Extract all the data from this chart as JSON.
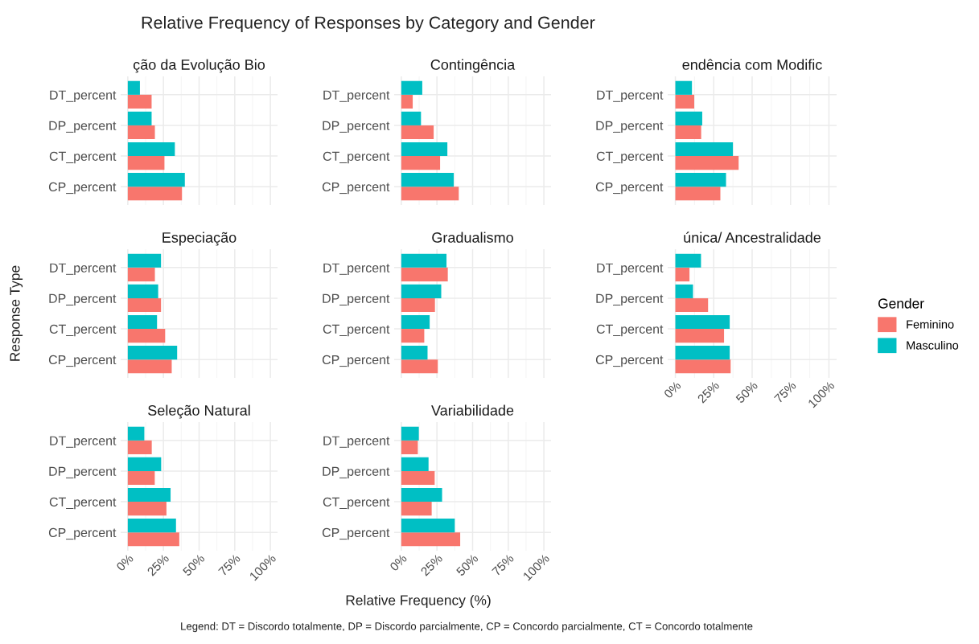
{
  "chart_data": [
    {
      "type": "bar",
      "orientation": "horizontal",
      "title": "ção da Evolução Bio",
      "categories": [
        "DT_percent",
        "DP_percent",
        "CT_percent",
        "CP_percent"
      ],
      "series": [
        {
          "name": "Feminino",
          "color": "#f8766d",
          "values": [
            16.7,
            19,
            25.7,
            38
          ]
        },
        {
          "name": "Masculino",
          "color": "#00bfc4",
          "values": [
            8.5,
            16.7,
            33,
            40
          ]
        }
      ],
      "xlim": [
        -5,
        105
      ],
      "xticks": [
        {
          "value": 0,
          "label": null
        },
        {
          "value": 25,
          "label": null
        },
        {
          "value": 50,
          "label": null
        },
        {
          "value": 75,
          "label": null
        },
        {
          "value": 100,
          "label": null
        }
      ],
      "tick_labels": "y",
      "grid": true,
      "legend": "right",
      "legend_title": "Gender"
    },
    {
      "type": "bar",
      "orientation": "horizontal",
      "title": "Contingência",
      "categories": [
        "DT_percent",
        "DP_percent",
        "CT_percent",
        "CP_percent"
      ],
      "series": [
        {
          "color": "#f8766d",
          "values": [
            8,
            22.7,
            27.2,
            40.3
          ]
        },
        {
          "color": "#00bfc4",
          "values": [
            14.7,
            13.8,
            32.3,
            36.8
          ]
        }
      ],
      "xlim": [
        -5,
        105
      ],
      "xticks": [
        {
          "value": 0,
          "label": null
        },
        {
          "value": 25,
          "label": null
        },
        {
          "value": 50,
          "label": null
        },
        {
          "value": 75,
          "label": null
        },
        {
          "value": 100,
          "label": null
        }
      ],
      "tick_labels": "y",
      "grid": true
    },
    {
      "type": "bar",
      "orientation": "horizontal",
      "title": "endência com Modific",
      "categories": [
        "DT_percent",
        "DP_percent",
        "CT_percent",
        "CP_percent"
      ],
      "series": [
        {
          "color": "#f8766d",
          "values": [
            12.3,
            16.8,
            41.2,
            29.3
          ]
        },
        {
          "color": "#00bfc4",
          "values": [
            10.8,
            17.5,
            37.5,
            33
          ]
        }
      ],
      "xlim": [
        -5,
        105
      ],
      "xticks": [
        {
          "value": 0,
          "label": null
        },
        {
          "value": 25,
          "label": null
        },
        {
          "value": 50,
          "label": null
        },
        {
          "value": 75,
          "label": null
        },
        {
          "value": 100,
          "label": null
        }
      ],
      "tick_labels": "y",
      "grid": true
    },
    {
      "type": "bar",
      "orientation": "horizontal",
      "title": "Especiação",
      "categories": [
        "DT_percent",
        "DP_percent",
        "CT_percent",
        "CP_percent"
      ],
      "series": [
        {
          "color": "#f8766d",
          "values": [
            19,
            23.3,
            26.2,
            30.8
          ]
        },
        {
          "color": "#00bfc4",
          "values": [
            23.3,
            21.3,
            20.5,
            34.6
          ]
        }
      ],
      "xlim": [
        -5,
        105
      ],
      "xticks": [
        {
          "value": 0,
          "label": null
        },
        {
          "value": 25,
          "label": null
        },
        {
          "value": 50,
          "label": null
        },
        {
          "value": 75,
          "label": null
        },
        {
          "value": 100,
          "label": null
        }
      ],
      "tick_labels": "y",
      "grid": true
    },
    {
      "type": "bar",
      "orientation": "horizontal",
      "title": "Gradualismo",
      "categories": [
        "DT_percent",
        "DP_percent",
        "CT_percent",
        "CP_percent"
      ],
      "series": [
        {
          "color": "#f8766d",
          "values": [
            32.6,
            23.6,
            16.1,
            25.6
          ]
        },
        {
          "color": "#00bfc4",
          "values": [
            31.7,
            28,
            19.9,
            18.4
          ]
        }
      ],
      "xlim": [
        -5,
        105
      ],
      "xticks": [
        {
          "value": 0,
          "label": null
        },
        {
          "value": 25,
          "label": null
        },
        {
          "value": 50,
          "label": null
        },
        {
          "value": 75,
          "label": null
        },
        {
          "value": 100,
          "label": null
        }
      ],
      "tick_labels": "y",
      "grid": true
    },
    {
      "type": "bar",
      "orientation": "horizontal",
      "title": "única/ Ancestralidade",
      "categories": [
        "DT_percent",
        "DP_percent",
        "CT_percent",
        "CP_percent"
      ],
      "series": [
        {
          "color": "#f8766d",
          "values": [
            9.2,
            21.3,
            31.7,
            36
          ]
        },
        {
          "color": "#00bfc4",
          "values": [
            16.7,
            11.5,
            35.4,
            35.4
          ]
        }
      ],
      "xlim": [
        -5,
        105
      ],
      "xticks": [
        {
          "value": 0,
          "label": "0%"
        },
        {
          "value": 25,
          "label": "25%"
        },
        {
          "value": 50,
          "label": "50%"
        },
        {
          "value": 75,
          "label": "75%"
        },
        {
          "value": 100,
          "label": "100%"
        }
      ],
      "grid": true
    },
    {
      "type": "bar",
      "orientation": "horizontal",
      "title": "Seleção Natural",
      "categories": [
        "DT_percent",
        "DP_percent",
        "CT_percent",
        "CP_percent"
      ],
      "series": [
        {
          "color": "#f8766d",
          "values": [
            16.8,
            18.9,
            27.1,
            36.1
          ]
        },
        {
          "color": "#00bfc4",
          "values": [
            11.6,
            23.4,
            30,
            33.8
          ]
        }
      ],
      "xlim": [
        -5,
        105
      ],
      "xticks": [
        {
          "value": 0,
          "label": "0%"
        },
        {
          "value": 25,
          "label": "25%"
        },
        {
          "value": 50,
          "label": "50%"
        },
        {
          "value": 75,
          "label": "75%"
        },
        {
          "value": 100,
          "label": "100%"
        }
      ],
      "grid": true
    },
    {
      "type": "bar",
      "orientation": "horizontal",
      "title": "Variabilidade",
      "categories": [
        "DT_percent",
        "DP_percent",
        "CT_percent",
        "CP_percent"
      ],
      "series": [
        {
          "color": "#f8766d",
          "values": [
            11.6,
            23.4,
            21.3,
            41.3
          ]
        },
        {
          "color": "#00bfc4",
          "values": [
            12.3,
            19.1,
            28.6,
            37.5
          ]
        }
      ],
      "xlim": [
        -5,
        105
      ],
      "xticks": [
        {
          "value": 0,
          "label": "0%"
        },
        {
          "value": 25,
          "label": "25%"
        },
        {
          "value": 50,
          "label": "50%"
        },
        {
          "value": 75,
          "label": "75%"
        },
        {
          "value": 100,
          "label": "100%"
        }
      ],
      "grid": true
    },
    {
      "type": "other",
      "title": "Relative Frequency of Responses by Category and Gender",
      "xlabel": "Relative Frequency (%)",
      "ylabel": "Response Type",
      "annotations": [
        "Legend: DT = Discordo totalmente, DP = Discordo parcialmente, CP = Concordo parcialmente, CT = Concordo totalmente"
      ]
    }
  ]
}
